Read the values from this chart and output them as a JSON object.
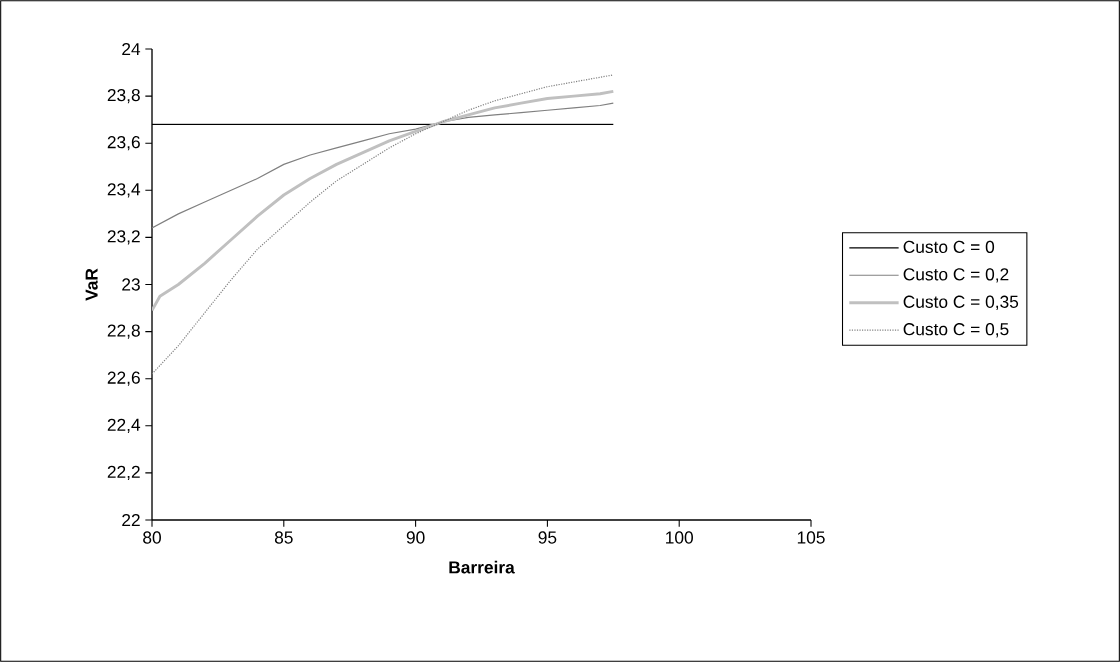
{
  "chart_data": {
    "type": "line",
    "xlabel": "Barreira",
    "ylabel": "VaR",
    "xlim": [
      80,
      105
    ],
    "xticks": [
      80,
      85,
      90,
      95,
      100,
      105
    ],
    "ylim": [
      22,
      24
    ],
    "yticks": [
      22,
      {
        "value": 22.2,
        "label": "22,2"
      },
      {
        "value": 22.4,
        "label": "22,4"
      },
      {
        "value": 22.6,
        "label": "22,6"
      },
      {
        "value": 22.8,
        "label": "22,8"
      },
      23,
      {
        "value": 23.2,
        "label": "23,2"
      },
      {
        "value": 23.4,
        "label": "23,4"
      },
      {
        "value": 23.6,
        "label": "23,6"
      },
      {
        "value": 23.8,
        "label": "23,8"
      },
      24
    ],
    "grid": false,
    "legend": "right",
    "marker": "none",
    "x": [
      80,
      81,
      82,
      83,
      84,
      85,
      86,
      87,
      88,
      89,
      90,
      91,
      92,
      93,
      94,
      95,
      96,
      97,
      97.5
    ],
    "series": [
      {
        "name": "Custo C = 0",
        "color": "#000000",
        "line_style": "solid",
        "values": [
          23.68,
          23.68,
          23.68,
          23.68,
          23.68,
          23.68,
          23.68,
          23.68,
          23.68,
          23.68,
          23.68,
          23.68,
          23.68,
          23.68,
          23.68,
          23.68,
          23.68,
          23.68,
          23.68
        ]
      },
      {
        "name": "Custo C = 0,2",
        "color": "#808080",
        "line_style": "solid",
        "values": [
          23.24,
          23.3,
          23.35,
          23.4,
          23.45,
          23.51,
          23.55,
          23.58,
          23.61,
          23.64,
          23.66,
          23.69,
          23.71,
          23.72,
          23.73,
          23.74,
          23.75,
          23.76,
          23.77
        ]
      },
      {
        "name": "Custo C = 0,35",
        "color": "#c0c0c0",
        "line_style": "solid",
        "x": [
          80,
          80.3,
          81,
          82,
          83,
          84,
          85,
          86,
          87,
          88,
          89,
          90,
          91,
          92,
          93,
          94,
          95,
          96,
          97,
          97.5
        ],
        "values": [
          22.89,
          22.95,
          23.0,
          23.09,
          23.19,
          23.29,
          23.38,
          23.45,
          23.51,
          23.56,
          23.61,
          23.65,
          23.69,
          23.72,
          23.75,
          23.77,
          23.79,
          23.8,
          23.81,
          23.82
        ]
      },
      {
        "name": "Custo C = 0,5",
        "color": "#808080",
        "line_style": "dotted",
        "values": [
          22.62,
          22.74,
          22.88,
          23.02,
          23.15,
          23.25,
          23.35,
          23.44,
          23.51,
          23.58,
          23.64,
          23.69,
          23.74,
          23.78,
          23.81,
          23.84,
          23.86,
          23.88,
          23.89
        ]
      }
    ]
  }
}
